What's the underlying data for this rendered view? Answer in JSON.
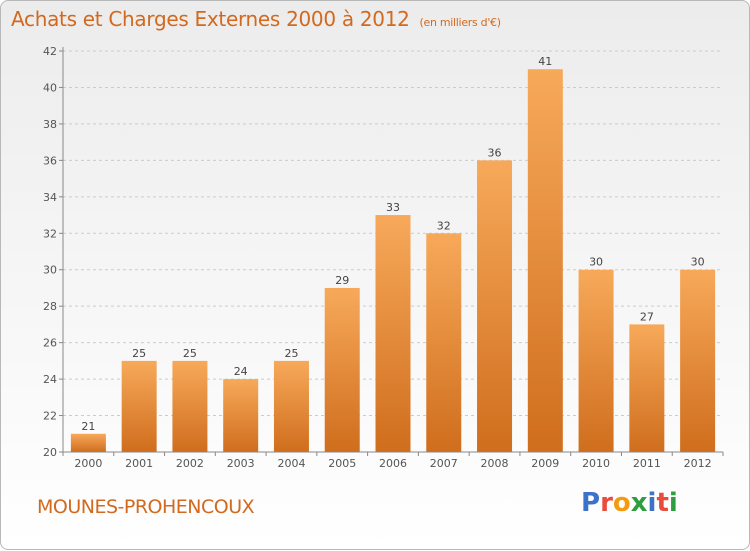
{
  "header": {
    "title": "Achats et Charges Externes 2000 à 2012",
    "subtitle": "(en milliers d'€)"
  },
  "footer": {
    "place": "MOUNES-PROHENCOUX",
    "logo_text": "Proxiti",
    "logo_colors": [
      "#3b73c8",
      "#e74c3c",
      "#f39c12",
      "#2e9e3e",
      "#3b73c8",
      "#e74c3c",
      "#2e9e3e"
    ]
  },
  "colors": {
    "bar_light": "#f7a95a",
    "bar_dark": "#cf6e1d",
    "accent": "#d2691e",
    "grid": "#cccccc"
  },
  "chart_data": {
    "type": "bar",
    "title": "Achats et Charges Externes 2000 à 2012",
    "subtitle": "(en milliers d'€)",
    "categories": [
      "2000",
      "2001",
      "2002",
      "2003",
      "2004",
      "2005",
      "2006",
      "2007",
      "2008",
      "2009",
      "2010",
      "2011",
      "2012"
    ],
    "values": [
      21,
      25,
      25,
      24,
      25,
      29,
      33,
      32,
      36,
      41,
      30,
      27,
      30
    ],
    "ylim": [
      20,
      42
    ],
    "yticks": [
      20,
      22,
      24,
      26,
      28,
      30,
      32,
      34,
      36,
      38,
      40,
      42
    ],
    "grid": "horizontal",
    "data_labels": true
  }
}
